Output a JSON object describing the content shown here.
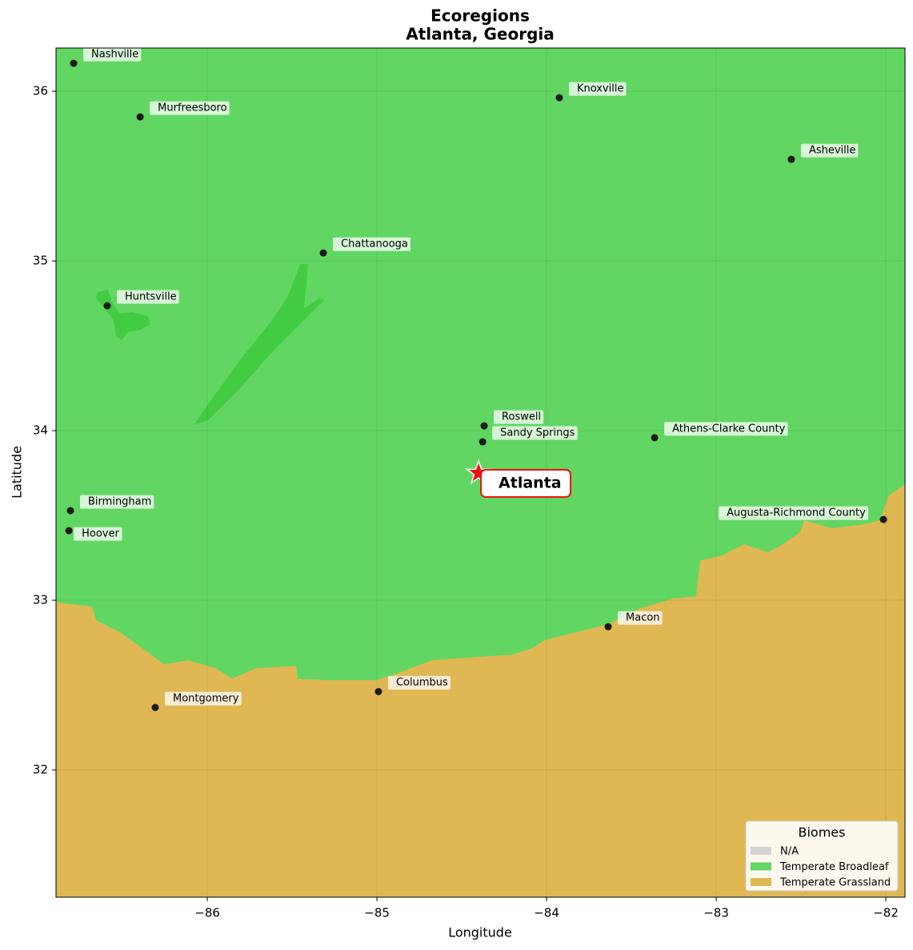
{
  "chart_data": {
    "type": "map",
    "title": "Ecoregions",
    "subtitle": "Atlanta, Georgia",
    "xlabel": "Longitude",
    "ylabel": "Latitude",
    "xlim": [
      -86.892,
      -81.887
    ],
    "ylim": [
      31.25,
      36.255
    ],
    "xticks": [
      {
        "value": -86,
        "label": "−86"
      },
      {
        "value": -85,
        "label": "−85"
      },
      {
        "value": -84,
        "label": "−84"
      },
      {
        "value": -83,
        "label": "−83"
      },
      {
        "value": -82,
        "label": "−82"
      }
    ],
    "yticks": [
      32,
      33,
      34,
      35,
      36
    ],
    "grid": true,
    "point_color": "#1a1a1a",
    "points": [
      {
        "name": "Nashville",
        "lon": -86.788,
        "lat": 36.165
      },
      {
        "name": "Murfreesboro",
        "lon": -86.396,
        "lat": 35.849
      },
      {
        "name": "Knoxville",
        "lon": -83.925,
        "lat": 35.962
      },
      {
        "name": "Asheville",
        "lon": -82.557,
        "lat": 35.599
      },
      {
        "name": "Chattanooga",
        "lon": -85.316,
        "lat": 35.047
      },
      {
        "name": "Huntsville",
        "lon": -86.59,
        "lat": 34.736
      },
      {
        "name": "Roswell",
        "lon": -84.368,
        "lat": 34.028
      },
      {
        "name": "Sandy Springs",
        "lon": -84.377,
        "lat": 33.934
      },
      {
        "name": "Athens-Clarke County",
        "lon": -83.363,
        "lat": 33.958
      },
      {
        "name": "Birmingham",
        "lon": -86.807,
        "lat": 33.528
      },
      {
        "name": "Hoover",
        "lon": -86.816,
        "lat": 33.41
      },
      {
        "name": "Augusta-Richmond County",
        "lon": -82.014,
        "lat": 33.476
      },
      {
        "name": "Macon",
        "lon": -83.637,
        "lat": 32.844
      },
      {
        "name": "Columbus",
        "lon": -84.991,
        "lat": 32.462
      },
      {
        "name": "Montgomery",
        "lon": -86.307,
        "lat": 32.368
      }
    ],
    "highlight": {
      "name": "Atlanta",
      "lon": -84.401,
      "lat": 33.75,
      "color": "#ee1111"
    },
    "legend": {
      "title": "Biomes",
      "position": "lower right",
      "entries": [
        {
          "name": "N/A",
          "color": "#d3d3d3"
        },
        {
          "name": "Temperate Broadleaf",
          "color": "#62d662"
        },
        {
          "name": "Temperate Grassland",
          "color": "#dfb854"
        }
      ]
    }
  }
}
